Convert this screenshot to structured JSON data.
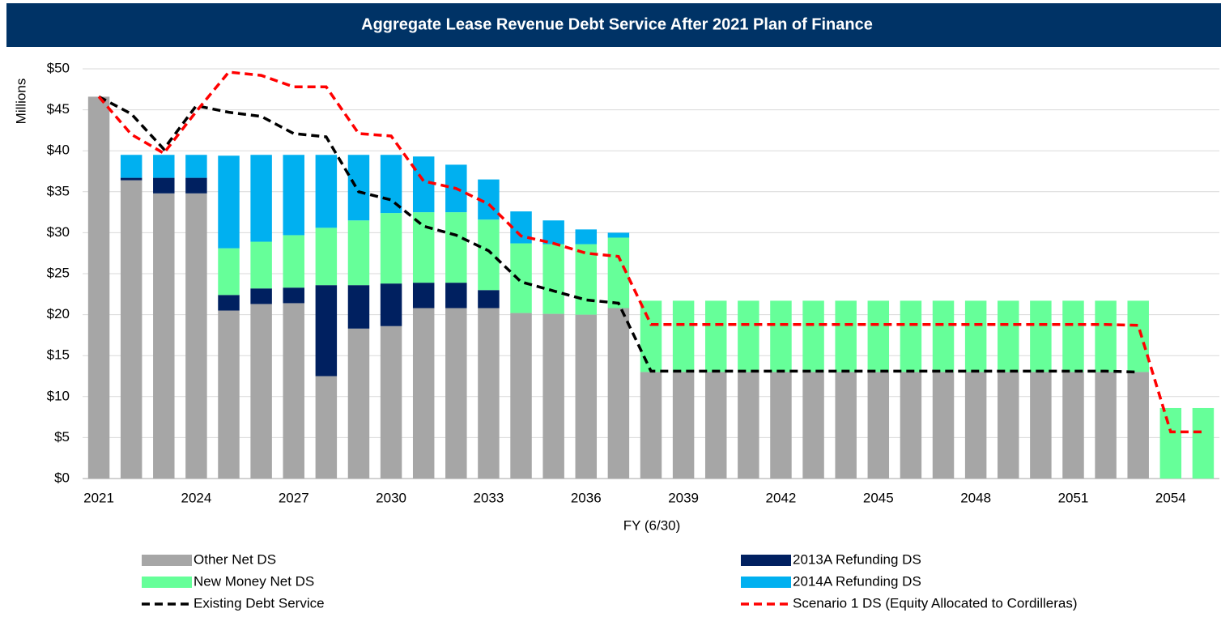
{
  "chart_data": {
    "type": "bar",
    "stacked": true,
    "title": "Aggregate Lease Revenue Debt Service After 2021 Plan of Finance",
    "y_label": "Millions",
    "x_label": "FY (6/30)",
    "categories": [
      "2021",
      null,
      null,
      "2024",
      null,
      null,
      "2027",
      null,
      null,
      "2030",
      null,
      null,
      "2033",
      null,
      null,
      "2036",
      null,
      null,
      "2039",
      null,
      null,
      "2042",
      null,
      null,
      "2045",
      null,
      null,
      "2048",
      null,
      null,
      "2051",
      null,
      null,
      "2054",
      null
    ],
    "ylim": [
      0,
      50
    ],
    "yticks": [
      {
        "value": 0,
        "label": "$0"
      },
      {
        "value": 5,
        "label": "$5"
      },
      {
        "value": 10,
        "label": "$10"
      },
      {
        "value": 15,
        "label": "$15"
      },
      {
        "value": 20,
        "label": "$20"
      },
      {
        "value": 25,
        "label": "$25"
      },
      {
        "value": 30,
        "label": "$30"
      },
      {
        "value": 35,
        "label": "$35"
      },
      {
        "value": 40,
        "label": "$40"
      },
      {
        "value": 45,
        "label": "$45"
      },
      {
        "value": 50,
        "label": "$50"
      }
    ],
    "grid": true,
    "legend": "bottom",
    "series": [
      {
        "name": "Other Net DS",
        "type": "bar",
        "color": "#a6a6a6",
        "values": [
          46.6,
          36.4,
          34.8,
          34.8,
          20.5,
          21.3,
          21.4,
          12.5,
          18.3,
          18.6,
          20.8,
          20.8,
          20.8,
          20.2,
          20.1,
          20.0,
          20.8,
          13.0,
          13.0,
          13.0,
          13.0,
          13.0,
          13.0,
          13.0,
          13.0,
          13.0,
          13.0,
          13.0,
          13.0,
          13.0,
          13.0,
          13.0,
          13.0,
          0,
          0
        ]
      },
      {
        "name": "2013A Refunding DS",
        "type": "bar",
        "color": "#002060",
        "values": [
          0,
          0.3,
          1.9,
          1.9,
          1.9,
          1.9,
          1.9,
          11.1,
          5.3,
          5.2,
          3.1,
          3.1,
          2.2,
          0,
          0,
          0,
          0,
          0,
          0,
          0,
          0,
          0,
          0,
          0,
          0,
          0,
          0,
          0,
          0,
          0,
          0,
          0,
          0,
          0,
          0
        ]
      },
      {
        "name": "New Money Net DS",
        "type": "bar",
        "color": "#66ff99",
        "values": [
          0,
          0,
          0,
          0,
          5.7,
          5.7,
          6.4,
          7.0,
          7.9,
          8.6,
          8.6,
          8.6,
          8.6,
          8.5,
          8.5,
          8.6,
          8.6,
          8.7,
          8.7,
          8.7,
          8.7,
          8.7,
          8.7,
          8.7,
          8.7,
          8.7,
          8.7,
          8.7,
          8.7,
          8.7,
          8.7,
          8.7,
          8.7,
          8.6,
          8.6
        ]
      },
      {
        "name": "2014A Refunding DS",
        "type": "bar",
        "color": "#00b0f0",
        "values": [
          0,
          2.8,
          2.8,
          2.8,
          11.3,
          10.6,
          9.8,
          8.9,
          8.0,
          7.1,
          6.8,
          5.8,
          4.9,
          3.9,
          2.9,
          1.8,
          0.6,
          0,
          0,
          0,
          0,
          0,
          0,
          0,
          0,
          0,
          0,
          0,
          0,
          0,
          0,
          0,
          0,
          0,
          0
        ]
      },
      {
        "name": "Existing Debt Service",
        "type": "line",
        "dashed": true,
        "color": "#000000",
        "values": [
          46.6,
          44.5,
          40.2,
          45.5,
          44.7,
          44.2,
          42.1,
          41.7,
          35.0,
          34.0,
          30.8,
          29.7,
          27.8,
          24.0,
          22.9,
          21.8,
          21.4,
          13.1,
          13.1,
          13.1,
          13.1,
          13.1,
          13.1,
          13.1,
          13.1,
          13.1,
          13.1,
          13.1,
          13.1,
          13.1,
          13.1,
          13.1,
          13.0,
          null,
          null
        ]
      },
      {
        "name": "Scenario 1 DS (Equity Allocated to Cordilleras)",
        "type": "line",
        "dashed": true,
        "color": "#ff0000",
        "values": [
          46.6,
          42.0,
          39.7,
          44.8,
          49.6,
          49.2,
          47.8,
          47.8,
          42.1,
          41.8,
          36.3,
          35.4,
          33.5,
          29.6,
          28.7,
          27.5,
          27.1,
          18.8,
          18.8,
          18.8,
          18.8,
          18.8,
          18.8,
          18.8,
          18.8,
          18.8,
          18.8,
          18.8,
          18.8,
          18.8,
          18.8,
          18.8,
          18.7,
          5.7,
          5.7
        ]
      }
    ]
  }
}
